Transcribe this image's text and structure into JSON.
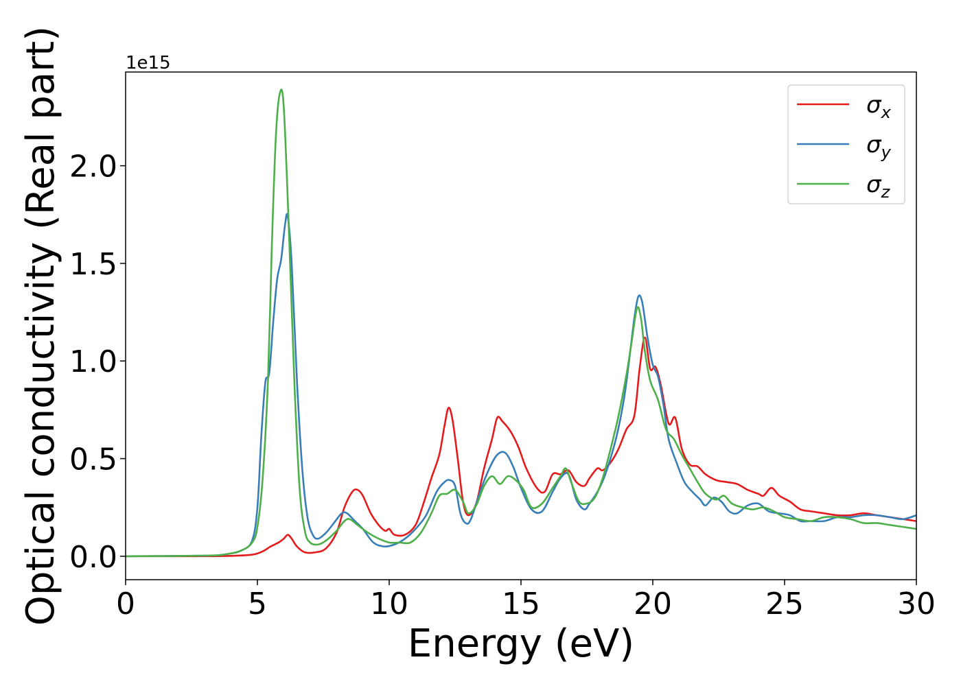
{
  "chart_data": {
    "type": "line",
    "xlabel": "Energy (eV)",
    "ylabel": "Optical conductivity (Real part)",
    "y_offset_label": "1e15",
    "xlim": [
      0,
      30
    ],
    "ylim": [
      -0.12,
      2.48
    ],
    "x_ticks": [
      0,
      5,
      10,
      15,
      20,
      25,
      30
    ],
    "x_tick_labels": [
      "0",
      "5",
      "10",
      "15",
      "20",
      "25",
      "30"
    ],
    "y_ticks": [
      0.0,
      0.5,
      1.0,
      1.5,
      2.0
    ],
    "y_tick_labels": [
      "0.0",
      "0.5",
      "1.0",
      "1.5",
      "2.0"
    ],
    "grid": false,
    "legend_position": "top-right",
    "colors": {
      "sigma_x": "#e41a1c",
      "sigma_y": "#377eb8",
      "sigma_z": "#4daf4a"
    },
    "series": [
      {
        "name": "σx",
        "legend_base": "σ",
        "legend_sub": "x",
        "color": "#e41a1c",
        "points": [
          [
            0,
            0
          ],
          [
            3,
            0
          ],
          [
            4,
            0.002
          ],
          [
            4.8,
            0.008
          ],
          [
            5.2,
            0.025
          ],
          [
            5.5,
            0.05
          ],
          [
            5.8,
            0.07
          ],
          [
            6.0,
            0.09
          ],
          [
            6.15,
            0.11
          ],
          [
            6.3,
            0.09
          ],
          [
            6.5,
            0.05
          ],
          [
            6.8,
            0.02
          ],
          [
            7.2,
            0.02
          ],
          [
            7.6,
            0.04
          ],
          [
            8.0,
            0.12
          ],
          [
            8.3,
            0.25
          ],
          [
            8.6,
            0.33
          ],
          [
            8.8,
            0.34
          ],
          [
            9.0,
            0.31
          ],
          [
            9.3,
            0.22
          ],
          [
            9.6,
            0.16
          ],
          [
            9.85,
            0.13
          ],
          [
            10.0,
            0.14
          ],
          [
            10.2,
            0.11
          ],
          [
            10.6,
            0.11
          ],
          [
            11.0,
            0.16
          ],
          [
            11.3,
            0.27
          ],
          [
            11.6,
            0.4
          ],
          [
            11.9,
            0.52
          ],
          [
            12.1,
            0.67
          ],
          [
            12.25,
            0.76
          ],
          [
            12.4,
            0.7
          ],
          [
            12.6,
            0.5
          ],
          [
            12.8,
            0.28
          ],
          [
            13.0,
            0.21
          ],
          [
            13.3,
            0.27
          ],
          [
            13.6,
            0.45
          ],
          [
            13.9,
            0.6
          ],
          [
            14.1,
            0.71
          ],
          [
            14.3,
            0.69
          ],
          [
            14.6,
            0.64
          ],
          [
            14.9,
            0.56
          ],
          [
            15.2,
            0.45
          ],
          [
            15.6,
            0.35
          ],
          [
            15.9,
            0.33
          ],
          [
            16.2,
            0.42
          ],
          [
            16.5,
            0.42
          ],
          [
            16.8,
            0.44
          ],
          [
            17.1,
            0.38
          ],
          [
            17.4,
            0.36
          ],
          [
            17.6,
            0.4
          ],
          [
            17.9,
            0.45
          ],
          [
            18.1,
            0.44
          ],
          [
            18.4,
            0.48
          ],
          [
            18.7,
            0.55
          ],
          [
            19.0,
            0.65
          ],
          [
            19.3,
            0.72
          ],
          [
            19.5,
            0.96
          ],
          [
            19.7,
            1.12
          ],
          [
            19.9,
            0.96
          ],
          [
            20.1,
            0.97
          ],
          [
            20.3,
            0.88
          ],
          [
            20.6,
            0.68
          ],
          [
            20.85,
            0.71
          ],
          [
            21.1,
            0.55
          ],
          [
            21.4,
            0.47
          ],
          [
            21.7,
            0.46
          ],
          [
            22.0,
            0.42
          ],
          [
            22.4,
            0.39
          ],
          [
            22.8,
            0.38
          ],
          [
            23.2,
            0.37
          ],
          [
            23.6,
            0.34
          ],
          [
            24.0,
            0.32
          ],
          [
            24.2,
            0.31
          ],
          [
            24.5,
            0.35
          ],
          [
            24.8,
            0.31
          ],
          [
            25.2,
            0.28
          ],
          [
            25.6,
            0.24
          ],
          [
            26.0,
            0.23
          ],
          [
            26.5,
            0.22
          ],
          [
            27.0,
            0.21
          ],
          [
            27.5,
            0.21
          ],
          [
            28.0,
            0.22
          ],
          [
            28.5,
            0.21
          ],
          [
            29.0,
            0.2
          ],
          [
            29.5,
            0.19
          ],
          [
            30.0,
            0.18
          ]
        ]
      },
      {
        "name": "σy",
        "legend_base": "σ",
        "legend_sub": "y",
        "color": "#377eb8",
        "points": [
          [
            0,
            0
          ],
          [
            3,
            0.003
          ],
          [
            3.8,
            0.01
          ],
          [
            4.4,
            0.03
          ],
          [
            4.8,
            0.08
          ],
          [
            5.0,
            0.25
          ],
          [
            5.15,
            0.62
          ],
          [
            5.3,
            0.89
          ],
          [
            5.45,
            0.94
          ],
          [
            5.6,
            1.2
          ],
          [
            5.75,
            1.42
          ],
          [
            5.9,
            1.52
          ],
          [
            6.05,
            1.7
          ],
          [
            6.15,
            1.74
          ],
          [
            6.3,
            1.5
          ],
          [
            6.5,
            0.9
          ],
          [
            6.7,
            0.45
          ],
          [
            6.9,
            0.2
          ],
          [
            7.1,
            0.11
          ],
          [
            7.3,
            0.09
          ],
          [
            7.6,
            0.12
          ],
          [
            7.9,
            0.17
          ],
          [
            8.2,
            0.22
          ],
          [
            8.4,
            0.22
          ],
          [
            8.7,
            0.18
          ],
          [
            9.0,
            0.14
          ],
          [
            9.4,
            0.07
          ],
          [
            9.8,
            0.05
          ],
          [
            10.2,
            0.06
          ],
          [
            10.6,
            0.09
          ],
          [
            11.0,
            0.14
          ],
          [
            11.4,
            0.21
          ],
          [
            11.8,
            0.33
          ],
          [
            12.1,
            0.38
          ],
          [
            12.3,
            0.39
          ],
          [
            12.5,
            0.36
          ],
          [
            12.7,
            0.22
          ],
          [
            12.9,
            0.17
          ],
          [
            13.1,
            0.19
          ],
          [
            13.5,
            0.35
          ],
          [
            13.8,
            0.45
          ],
          [
            14.1,
            0.52
          ],
          [
            14.4,
            0.53
          ],
          [
            14.7,
            0.46
          ],
          [
            15.0,
            0.35
          ],
          [
            15.4,
            0.24
          ],
          [
            15.8,
            0.23
          ],
          [
            16.2,
            0.33
          ],
          [
            16.5,
            0.4
          ],
          [
            16.8,
            0.42
          ],
          [
            17.1,
            0.29
          ],
          [
            17.4,
            0.24
          ],
          [
            17.6,
            0.27
          ],
          [
            17.9,
            0.33
          ],
          [
            18.2,
            0.42
          ],
          [
            18.6,
            0.6
          ],
          [
            18.9,
            0.8
          ],
          [
            19.1,
            1.0
          ],
          [
            19.3,
            1.22
          ],
          [
            19.45,
            1.33
          ],
          [
            19.6,
            1.3
          ],
          [
            19.8,
            1.12
          ],
          [
            20.0,
            0.98
          ],
          [
            20.2,
            0.92
          ],
          [
            20.4,
            0.78
          ],
          [
            20.6,
            0.6
          ],
          [
            20.9,
            0.48
          ],
          [
            21.2,
            0.38
          ],
          [
            21.5,
            0.33
          ],
          [
            21.8,
            0.29
          ],
          [
            22.0,
            0.26
          ],
          [
            22.3,
            0.3
          ],
          [
            22.6,
            0.28
          ],
          [
            22.9,
            0.23
          ],
          [
            23.2,
            0.22
          ],
          [
            23.6,
            0.26
          ],
          [
            24.0,
            0.27
          ],
          [
            24.4,
            0.23
          ],
          [
            24.8,
            0.22
          ],
          [
            25.2,
            0.21
          ],
          [
            25.6,
            0.18
          ],
          [
            26.0,
            0.18
          ],
          [
            26.5,
            0.18
          ],
          [
            27.0,
            0.2
          ],
          [
            27.5,
            0.2
          ],
          [
            28.0,
            0.21
          ],
          [
            28.5,
            0.21
          ],
          [
            29.0,
            0.2
          ],
          [
            29.5,
            0.19
          ],
          [
            30.0,
            0.21
          ]
        ]
      },
      {
        "name": "σz",
        "legend_base": "σ",
        "legend_sub": "z",
        "color": "#4daf4a",
        "points": [
          [
            0,
            0
          ],
          [
            3,
            0.003
          ],
          [
            3.8,
            0.01
          ],
          [
            4.4,
            0.03
          ],
          [
            4.8,
            0.07
          ],
          [
            5.0,
            0.15
          ],
          [
            5.2,
            0.4
          ],
          [
            5.4,
            0.9
          ],
          [
            5.55,
            1.6
          ],
          [
            5.7,
            2.15
          ],
          [
            5.85,
            2.37
          ],
          [
            6.0,
            2.3
          ],
          [
            6.2,
            1.65
          ],
          [
            6.4,
            0.9
          ],
          [
            6.6,
            0.35
          ],
          [
            6.8,
            0.13
          ],
          [
            7.0,
            0.07
          ],
          [
            7.3,
            0.06
          ],
          [
            7.6,
            0.08
          ],
          [
            8.0,
            0.13
          ],
          [
            8.3,
            0.18
          ],
          [
            8.5,
            0.19
          ],
          [
            8.8,
            0.16
          ],
          [
            9.2,
            0.12
          ],
          [
            9.6,
            0.09
          ],
          [
            10.0,
            0.07
          ],
          [
            10.4,
            0.07
          ],
          [
            10.8,
            0.07
          ],
          [
            11.2,
            0.12
          ],
          [
            11.6,
            0.22
          ],
          [
            11.9,
            0.31
          ],
          [
            12.2,
            0.32
          ],
          [
            12.5,
            0.34
          ],
          [
            12.8,
            0.28
          ],
          [
            13.0,
            0.22
          ],
          [
            13.3,
            0.26
          ],
          [
            13.6,
            0.36
          ],
          [
            13.9,
            0.41
          ],
          [
            14.2,
            0.37
          ],
          [
            14.5,
            0.41
          ],
          [
            14.8,
            0.39
          ],
          [
            15.1,
            0.34
          ],
          [
            15.4,
            0.25
          ],
          [
            15.8,
            0.27
          ],
          [
            16.2,
            0.35
          ],
          [
            16.5,
            0.41
          ],
          [
            16.7,
            0.45
          ],
          [
            16.9,
            0.38
          ],
          [
            17.2,
            0.28
          ],
          [
            17.5,
            0.27
          ],
          [
            17.8,
            0.3
          ],
          [
            18.1,
            0.4
          ],
          [
            18.4,
            0.55
          ],
          [
            18.7,
            0.72
          ],
          [
            19.0,
            0.93
          ],
          [
            19.2,
            1.1
          ],
          [
            19.4,
            1.27
          ],
          [
            19.55,
            1.22
          ],
          [
            19.7,
            1.05
          ],
          [
            19.9,
            0.9
          ],
          [
            20.2,
            0.8
          ],
          [
            20.5,
            0.65
          ],
          [
            20.8,
            0.6
          ],
          [
            21.1,
            0.52
          ],
          [
            21.4,
            0.45
          ],
          [
            21.7,
            0.38
          ],
          [
            22.0,
            0.32
          ],
          [
            22.4,
            0.29
          ],
          [
            22.7,
            0.31
          ],
          [
            23.0,
            0.27
          ],
          [
            23.4,
            0.25
          ],
          [
            23.8,
            0.24
          ],
          [
            24.2,
            0.25
          ],
          [
            24.6,
            0.23
          ],
          [
            25.0,
            0.2
          ],
          [
            25.5,
            0.19
          ],
          [
            26.0,
            0.18
          ],
          [
            26.5,
            0.2
          ],
          [
            27.0,
            0.2
          ],
          [
            27.5,
            0.19
          ],
          [
            28.0,
            0.17
          ],
          [
            28.5,
            0.17
          ],
          [
            29.0,
            0.16
          ],
          [
            29.5,
            0.15
          ],
          [
            30.0,
            0.14
          ]
        ]
      }
    ]
  }
}
